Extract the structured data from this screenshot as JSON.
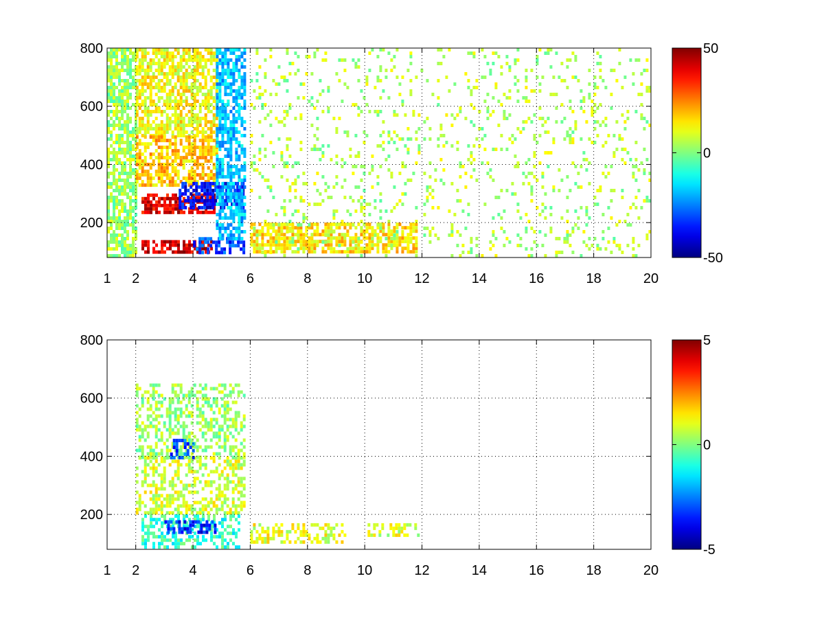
{
  "chart_data": [
    {
      "type": "heatmap",
      "title": "",
      "xlabel": "",
      "ylabel": "",
      "x_ticks": [
        "1",
        "2",
        "4",
        "6",
        "8",
        "10",
        "12",
        "14",
        "16",
        "18",
        "20"
      ],
      "x_tick_values": [
        1,
        2,
        4,
        6,
        8,
        10,
        12,
        14,
        16,
        18,
        20
      ],
      "y_ticks": [
        "200",
        "400",
        "600",
        "800"
      ],
      "y_tick_values": [
        200,
        400,
        600,
        800
      ],
      "xlim": [
        1,
        20
      ],
      "ylim": [
        80,
        800
      ],
      "grid": true,
      "colormap": "jet",
      "colorbar": {
        "ticks": [
          "50",
          "0",
          "-50"
        ],
        "tick_values": [
          50,
          0,
          -50
        ],
        "clim": [
          -50,
          50
        ]
      },
      "regions": [
        {
          "x": [
            1.0,
            2.0
          ],
          "y": [
            80,
            800
          ],
          "value": 3
        },
        {
          "x": [
            2.0,
            4.8
          ],
          "y": [
            500,
            800
          ],
          "value": 12
        },
        {
          "x": [
            2.0,
            4.8
          ],
          "y": [
            330,
            500
          ],
          "value": 18
        },
        {
          "x": [
            2.2,
            4.7
          ],
          "y": [
            240,
            300
          ],
          "value": 40
        },
        {
          "x": [
            2.2,
            4.6
          ],
          "y": [
            95,
            140
          ],
          "value": 42
        },
        {
          "x": [
            3.5,
            5.8
          ],
          "y": [
            250,
            340
          ],
          "value": -38
        },
        {
          "x": [
            4.0,
            5.8
          ],
          "y": [
            100,
            150
          ],
          "value": -32
        },
        {
          "x": [
            4.8,
            5.8
          ],
          "y": [
            150,
            800
          ],
          "value": -18
        },
        {
          "x": [
            6.0,
            11.8
          ],
          "y": [
            100,
            200
          ],
          "value": 15
        },
        {
          "x": [
            6.0,
            20.0
          ],
          "y": [
            80,
            800
          ],
          "value": 5
        }
      ]
    },
    {
      "type": "heatmap",
      "title": "",
      "xlabel": "",
      "ylabel": "",
      "x_ticks": [
        "1",
        "2",
        "4",
        "6",
        "8",
        "10",
        "12",
        "14",
        "16",
        "18",
        "20"
      ],
      "x_tick_values": [
        1,
        2,
        4,
        6,
        8,
        10,
        12,
        14,
        16,
        18,
        20
      ],
      "y_ticks": [
        "200",
        "400",
        "600",
        "800"
      ],
      "y_tick_values": [
        200,
        400,
        600,
        800
      ],
      "xlim": [
        1,
        20
      ],
      "ylim": [
        80,
        800
      ],
      "grid": true,
      "colormap": "jet",
      "colorbar": {
        "ticks": [
          "5",
          "0",
          "-5"
        ],
        "tick_values": [
          5,
          0,
          -5
        ],
        "clim": [
          -5,
          5
        ]
      },
      "regions": [
        {
          "x": [
            2.0,
            5.8
          ],
          "y": [
            200,
            400
          ],
          "value": 0.8
        },
        {
          "x": [
            2.0,
            5.8
          ],
          "y": [
            400,
            650
          ],
          "value": 0.3
        },
        {
          "x": [
            2.2,
            5.6
          ],
          "y": [
            90,
            200
          ],
          "value": -0.8
        },
        {
          "x": [
            3.0,
            4.8
          ],
          "y": [
            140,
            180
          ],
          "value": -3.5
        },
        {
          "x": [
            3.2,
            4.0
          ],
          "y": [
            400,
            460
          ],
          "value": -3.0
        },
        {
          "x": [
            6.0,
            9.3
          ],
          "y": [
            110,
            170
          ],
          "value": 1.0
        },
        {
          "x": [
            10.1,
            11.9
          ],
          "y": [
            130,
            170
          ],
          "value": 0.9
        }
      ]
    }
  ]
}
